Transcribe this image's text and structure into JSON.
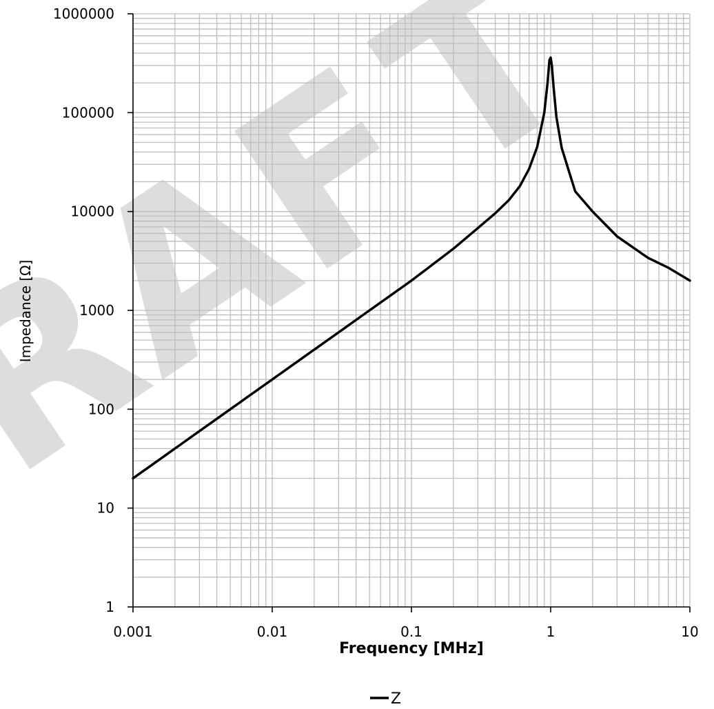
{
  "chart_data": {
    "type": "line",
    "title": "",
    "xlabel": "Frequency [MHz]",
    "ylabel": "Impedance [Ω]",
    "xscale": "log",
    "yscale": "log",
    "xlim": [
      0.001,
      10
    ],
    "ylim": [
      1,
      1000000
    ],
    "grid": true,
    "legend_position": "bottom",
    "x_tick_labels": [
      "0.001",
      "0.01",
      "0.1",
      "1",
      "10"
    ],
    "y_tick_labels": [
      "1",
      "10",
      "100",
      "1000",
      "10000",
      "100000",
      "1000000"
    ],
    "watermark": "DRAFT",
    "series": [
      {
        "name": "Z",
        "color": "#000000",
        "x": [
          0.001,
          0.002,
          0.005,
          0.01,
          0.02,
          0.05,
          0.1,
          0.2,
          0.3,
          0.4,
          0.5,
          0.6,
          0.7,
          0.8,
          0.9,
          0.95,
          0.98,
          1.0,
          1.02,
          1.05,
          1.1,
          1.2,
          1.5,
          2,
          3,
          5,
          7,
          10
        ],
        "values": [
          20,
          40,
          100,
          200,
          400,
          1000,
          2000,
          4200,
          6800,
          9600,
          13000,
          18000,
          27000,
          45000,
          100000,
          200000,
          340000,
          360000,
          300000,
          180000,
          90000,
          44000,
          16000,
          10000,
          5600,
          3400,
          2700,
          2000
        ]
      }
    ]
  }
}
